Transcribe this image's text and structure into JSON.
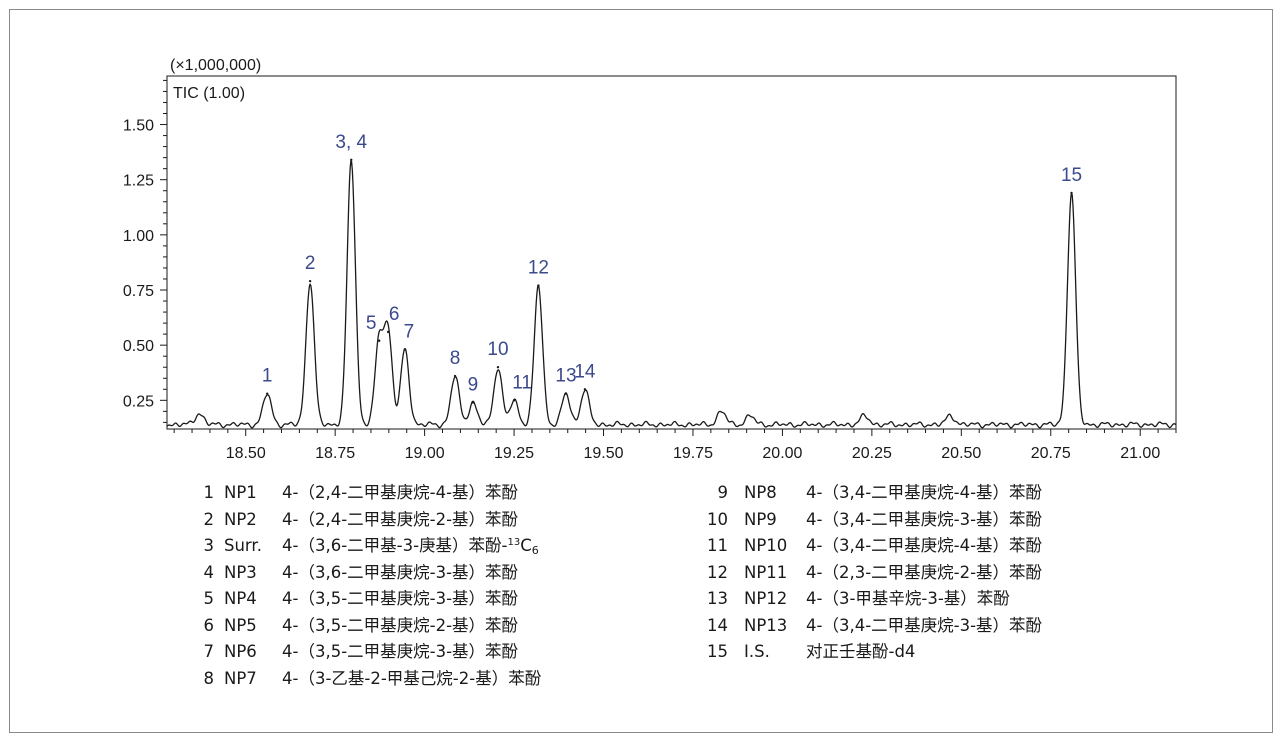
{
  "chart_data": {
    "type": "line",
    "scale_label": "(×1,000,000)",
    "series_label": "TIC (1.00)",
    "x_ticks": [
      "18.50",
      "18.75",
      "19.00",
      "19.25",
      "19.50",
      "19.75",
      "20.00",
      "20.25",
      "20.50",
      "20.75",
      "21.00"
    ],
    "y_ticks": [
      "0.25",
      "0.50",
      "0.75",
      "1.00",
      "1.25",
      "1.50"
    ],
    "xlim": [
      18.28,
      21.1
    ],
    "ylim": [
      0.12,
      1.72
    ],
    "baseline": 0.14,
    "peaks": [
      {
        "x": 18.56,
        "y": 0.28,
        "label": "1"
      },
      {
        "x": 18.68,
        "y": 0.79,
        "label": "2"
      },
      {
        "x": 18.795,
        "y": 1.34,
        "label": "3, 4"
      },
      {
        "x": 18.873,
        "y": 0.52,
        "label": "5"
      },
      {
        "x": 18.898,
        "y": 0.56,
        "label": "6"
      },
      {
        "x": 18.945,
        "y": 0.48,
        "label": "7"
      },
      {
        "x": 19.085,
        "y": 0.36,
        "label": "8"
      },
      {
        "x": 19.135,
        "y": 0.24,
        "label": "9"
      },
      {
        "x": 19.205,
        "y": 0.4,
        "label": "10"
      },
      {
        "x": 19.25,
        "y": 0.25,
        "label": "11"
      },
      {
        "x": 19.318,
        "y": 0.77,
        "label": "12"
      },
      {
        "x": 19.395,
        "y": 0.28,
        "label": "13"
      },
      {
        "x": 19.448,
        "y": 0.3,
        "label": "14"
      },
      {
        "x": 20.808,
        "y": 1.19,
        "label": "15"
      }
    ],
    "minor_peaks": [
      {
        "x": 18.37,
        "y": 0.19
      },
      {
        "x": 19.83,
        "y": 0.2
      },
      {
        "x": 19.91,
        "y": 0.18
      },
      {
        "x": 20.23,
        "y": 0.18
      },
      {
        "x": 20.47,
        "y": 0.18
      }
    ]
  },
  "legend": [
    {
      "num": "1",
      "code": "NP1",
      "name": "4-（2,4-二甲基庚烷-4-基）苯酚"
    },
    {
      "num": "2",
      "code": "NP2",
      "name": "4-（2,4-二甲基庚烷-2-基）苯酚"
    },
    {
      "num": "3",
      "code": "Surr.",
      "name_prefix": "4-（3,6-二甲基-3-庚基）苯酚-",
      "sup": "13",
      "base": "C",
      "sub": "6"
    },
    {
      "num": "4",
      "code": "NP3",
      "name": "4-（3,6-二甲基庚烷-3-基）苯酚"
    },
    {
      "num": "5",
      "code": "NP4",
      "name": "4-（3,5-二甲基庚烷-3-基）苯酚"
    },
    {
      "num": "6",
      "code": "NP5",
      "name": "4-（3,5-二甲基庚烷-2-基）苯酚"
    },
    {
      "num": "7",
      "code": "NP6",
      "name": "4-（3,5-二甲基庚烷-3-基）苯酚"
    },
    {
      "num": "8",
      "code": "NP7",
      "name": "4-（3-乙基-2-甲基己烷-2-基）苯酚"
    },
    {
      "num": "9",
      "code": "NP8",
      "name": "4-（3,4-二甲基庚烷-4-基）苯酚"
    },
    {
      "num": "10",
      "code": "NP9",
      "name": "4-（3,4-二甲基庚烷-3-基）苯酚"
    },
    {
      "num": "11",
      "code": "NP10",
      "name": "4-（3,4-二甲基庚烷-4-基）苯酚"
    },
    {
      "num": "12",
      "code": "NP11",
      "name": "4-（2,3-二甲基庚烷-2-基）苯酚"
    },
    {
      "num": "13",
      "code": "NP12",
      "name": "4-（3-甲基辛烷-3-基）苯酚"
    },
    {
      "num": "14",
      "code": "NP13",
      "name": "4-（3,4-二甲基庚烷-3-基）苯酚"
    },
    {
      "num": "15",
      "code": "I.S.",
      "name": "对正壬基酚-d4"
    }
  ],
  "colors": {
    "trace": "#1a1a1a",
    "peak_label": "#3b4a8c",
    "frame": "#8a8a8a"
  }
}
